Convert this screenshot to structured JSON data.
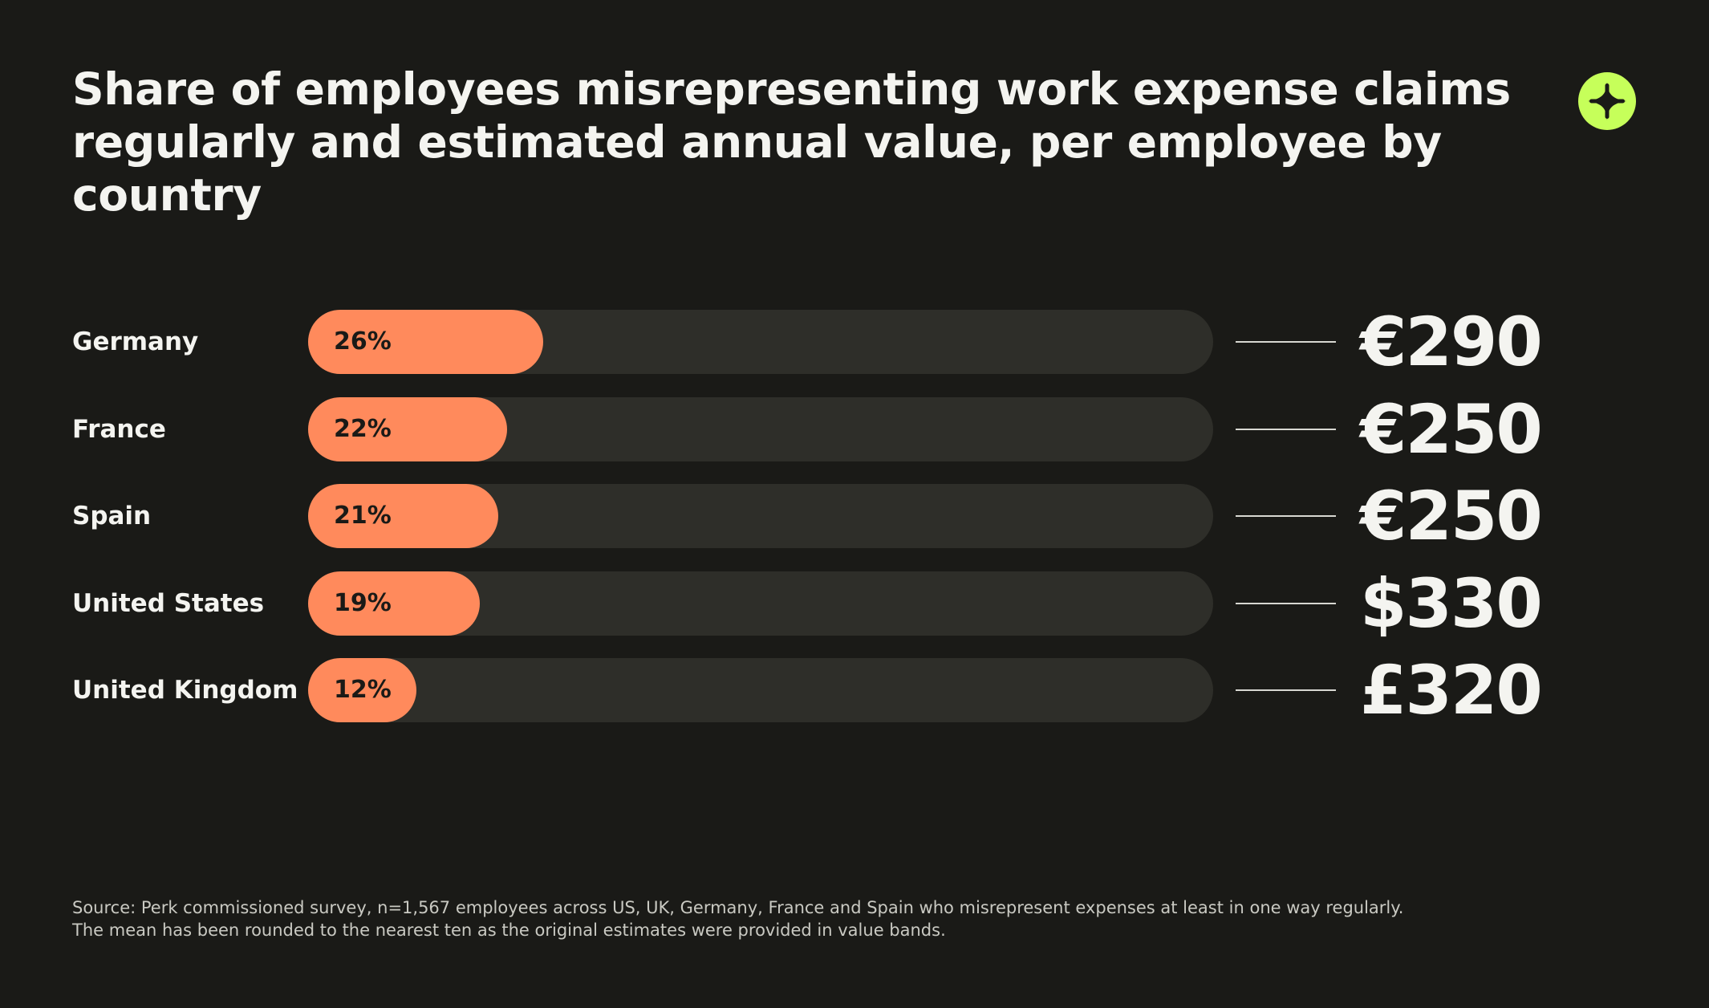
{
  "chart_data": {
    "type": "bar",
    "orientation": "horizontal",
    "title": "Share of employees misrepresenting work expense claims regularly and estimated annual value, per employee by country",
    "categories": [
      "Germany",
      "France",
      "Spain",
      "United States",
      "United Kingdom"
    ],
    "values": [
      26,
      22,
      21,
      19,
      12
    ],
    "value_labels": [
      "26%",
      "22%",
      "21%",
      "19%",
      "12%"
    ],
    "annual_values": [
      "€290",
      "€250",
      "€250",
      "$330",
      "£320"
    ],
    "xlim": [
      0,
      100
    ],
    "grid": false,
    "colors": {
      "fill": "#ff8a5c",
      "track": "#2e2e29",
      "background": "#1a1a17",
      "accent": "#c6ff5a"
    }
  },
  "badge": {
    "icon": "plus-icon"
  },
  "footnote": {
    "line1": "Source: Perk commissioned survey, n=1,567 employees across US, UK, Germany, France and Spain who misrepresent expenses at least in one way regularly.",
    "line2": "The mean has been rounded to the nearest ten as the original estimates were provided in value bands."
  }
}
